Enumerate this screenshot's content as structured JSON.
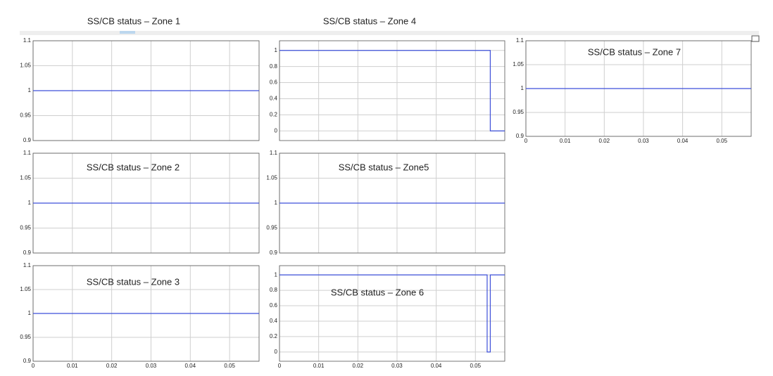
{
  "chart_data": [
    {
      "type": "line",
      "title": "SS/CB status – Zone 1",
      "x": [
        0,
        0.0575
      ],
      "values": [
        1,
        1
      ],
      "color": "#3d4fd9",
      "xlim": [
        0,
        0.0575
      ],
      "ylim": [
        0.9,
        1.1
      ],
      "xticks": [
        0,
        0.01,
        0.02,
        0.03,
        0.04,
        0.05
      ],
      "yticks": [
        0.9,
        0.95,
        1,
        1.05,
        1.1
      ],
      "grid": true,
      "xtick_labels": false
    },
    {
      "type": "line",
      "title": "SS/CB status – Zone 2",
      "x": [
        0,
        0.0575
      ],
      "values": [
        1,
        1
      ],
      "color": "#3d4fd9",
      "xlim": [
        0,
        0.0575
      ],
      "ylim": [
        0.9,
        1.1
      ],
      "xticks": [
        0,
        0.01,
        0.02,
        0.03,
        0.04,
        0.05
      ],
      "yticks": [
        0.9,
        0.95,
        1,
        1.05,
        1.1
      ],
      "grid": true,
      "xtick_labels": false
    },
    {
      "type": "line",
      "title": "SS/CB status – Zone 3",
      "x": [
        0,
        0.0575
      ],
      "values": [
        1,
        1
      ],
      "color": "#3d4fd9",
      "xlim": [
        0,
        0.0575
      ],
      "ylim": [
        0.9,
        1.1
      ],
      "xticks": [
        0,
        0.01,
        0.02,
        0.03,
        0.04,
        0.05
      ],
      "yticks": [
        0.9,
        0.95,
        1,
        1.05,
        1.1
      ],
      "grid": true,
      "xtick_labels": true
    },
    {
      "type": "line",
      "title": "SS/CB status – Zone 4",
      "x": [
        0,
        0.0538,
        0.0538,
        0.0575
      ],
      "values": [
        1,
        1,
        0,
        0
      ],
      "color": "#3d4fd9",
      "xlim": [
        0,
        0.0575
      ],
      "ylim": [
        -0.12,
        1.12
      ],
      "xticks": [
        0,
        0.01,
        0.02,
        0.03,
        0.04,
        0.05
      ],
      "yticks": [
        0,
        0.2,
        0.4,
        0.6,
        0.8,
        1
      ],
      "grid": true,
      "xtick_labels": false
    },
    {
      "type": "line",
      "title": "SS/CB status – Zone5",
      "x": [
        0,
        0.0575
      ],
      "values": [
        1,
        1
      ],
      "color": "#3d4fd9",
      "xlim": [
        0,
        0.0575
      ],
      "ylim": [
        0.9,
        1.1
      ],
      "xticks": [
        0,
        0.01,
        0.02,
        0.03,
        0.04,
        0.05
      ],
      "yticks": [
        0.9,
        0.95,
        1,
        1.05,
        1.1
      ],
      "grid": true,
      "xtick_labels": false
    },
    {
      "type": "line",
      "title": "SS/CB status – Zone 6",
      "x": [
        0,
        0.053,
        0.053,
        0.0538,
        0.0538,
        0.0575
      ],
      "values": [
        1,
        1,
        0,
        0,
        1,
        1
      ],
      "color": "#3d4fd9",
      "xlim": [
        0,
        0.0575
      ],
      "ylim": [
        -0.12,
        1.12
      ],
      "xticks": [
        0,
        0.01,
        0.02,
        0.03,
        0.04,
        0.05
      ],
      "yticks": [
        0,
        0.2,
        0.4,
        0.6,
        0.8,
        1
      ],
      "grid": true,
      "xtick_labels": true
    },
    {
      "type": "line",
      "title": "SS/CB status – Zone 7",
      "x": [
        0,
        0.0575
      ],
      "values": [
        1,
        1
      ],
      "color": "#3d4fd9",
      "xlim": [
        0,
        0.0575
      ],
      "ylim": [
        0.9,
        1.1
      ],
      "xticks": [
        0,
        0.01,
        0.02,
        0.03,
        0.04,
        0.05
      ],
      "yticks": [
        0.9,
        0.95,
        1,
        1.05,
        1.1
      ],
      "grid": true,
      "xtick_labels": true
    }
  ]
}
